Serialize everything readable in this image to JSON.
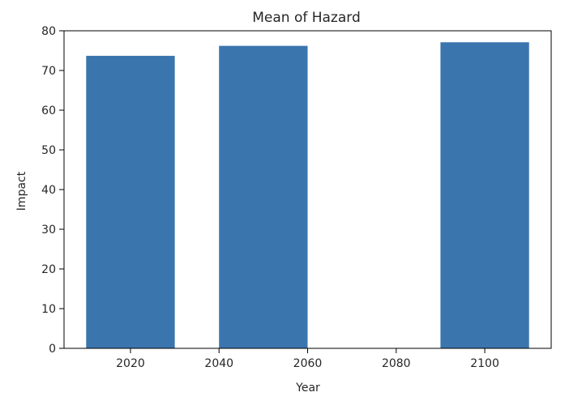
{
  "chart_data": {
    "type": "bar",
    "title": "Mean of Hazard",
    "xlabel": "Year",
    "ylabel": "Impact",
    "x": [
      2020,
      2050,
      2100
    ],
    "values": [
      73.7,
      76.2,
      77.1
    ],
    "bar_width_years": 20,
    "xlim": [
      2005,
      2115
    ],
    "ylim": [
      0,
      80
    ],
    "xticks": [
      2020,
      2040,
      2060,
      2080,
      2100
    ],
    "yticks": [
      0,
      10,
      20,
      30,
      40,
      50,
      60,
      70,
      80
    ],
    "color": "#3a75ae",
    "grid": false,
    "legend": "none"
  }
}
